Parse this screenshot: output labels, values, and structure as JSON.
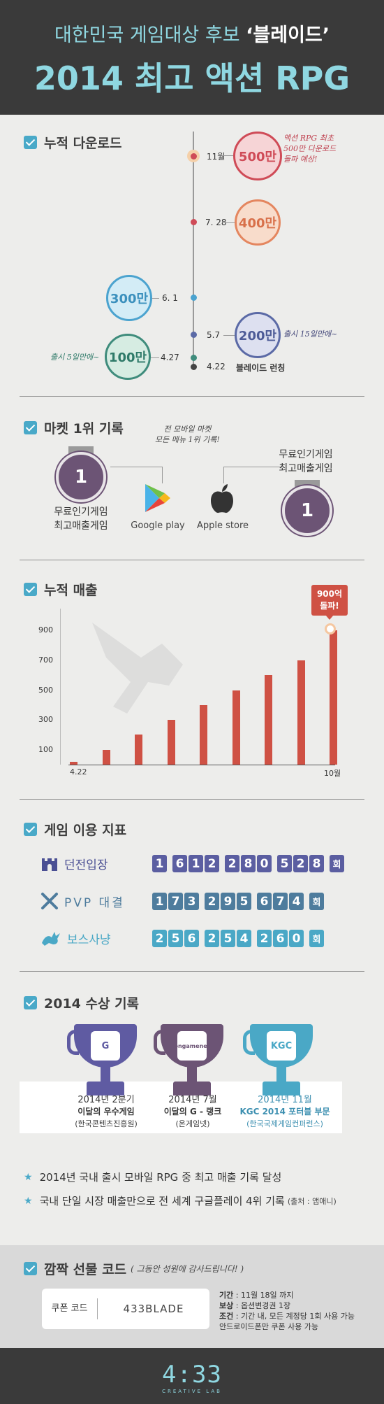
{
  "header": {
    "subtitle_prefix": "대한민국 게임대상 후보",
    "subtitle_game": "‘블레이드’",
    "title": "2014 최고 액션 RPG"
  },
  "downloads": {
    "title": "누적 다운로드",
    "milestones": [
      {
        "date": "11월",
        "value": "500만",
        "color": "#cf4b57"
      },
      {
        "date": "7. 28",
        "value": "400만",
        "color": "#e4865f"
      },
      {
        "date": "6. 1",
        "value": "300만",
        "color": "#4ba3cf"
      },
      {
        "date": "5.7",
        "value": "200만",
        "color": "#5b6aa6"
      },
      {
        "date": "4.27",
        "value": "100만",
        "color": "#3f8c7c"
      }
    ],
    "launch_date": "4.22",
    "launch_label": "블레이드 런칭",
    "note_500": "액션 RPG 최초\n500만 다운로드\n돌파 예상!",
    "note_200": "출시 15일만에~",
    "note_100": "출시 5일만에~"
  },
  "market": {
    "title": "마켓 1위 기록",
    "note": "전 모바일 마켓\n모든 메뉴 1위 기록!",
    "left_rank": "1",
    "right_rank": "1",
    "left_label": "무료인기게임\n최고매출게임",
    "right_label": "무료인기게임\n최고매출게임",
    "google_label": "Google play",
    "apple_label": "Apple store"
  },
  "revenue": {
    "title": "누적 매출",
    "callout": "900억\n돌파!"
  },
  "chart_data": {
    "type": "bar",
    "title": "누적 매출",
    "x_start_label": "4.22",
    "x_end_label": "10월",
    "yticks": [
      100,
      300,
      500,
      700,
      900
    ],
    "ylim": [
      0,
      1000
    ],
    "values": [
      20,
      100,
      200,
      300,
      400,
      500,
      600,
      700,
      900
    ],
    "callout": "900억 돌파!"
  },
  "stats": {
    "title": "게임 이용 지표",
    "rows": [
      {
        "label": "던전입장",
        "digits": [
          "1",
          "6",
          "1",
          "2",
          "2",
          "8",
          "0",
          "5",
          "2",
          "8"
        ],
        "unit": "회",
        "color": "#5b5ea1"
      },
      {
        "label": "PVP 대결",
        "digits": [
          "1",
          "7",
          "3",
          "2",
          "9",
          "5",
          "6",
          "7",
          "4"
        ],
        "unit": "회",
        "color": "#4e7c9d"
      },
      {
        "label": "보스사냥",
        "digits": [
          "2",
          "5",
          "6",
          "2",
          "5",
          "4",
          "2",
          "6",
          "0"
        ],
        "unit": "회",
        "color": "#4aa8c6"
      }
    ]
  },
  "awards": {
    "title": "2014 수상 기록",
    "items": [
      {
        "year": "2014년 2분기",
        "name": "이달의 우수게임",
        "org": "(한국콘텐츠진흥원)",
        "emblem": "G",
        "color": "#5f5ba2",
        "text_color": "#333"
      },
      {
        "year": "2014년 7월",
        "name": "이달의 G - 랭크",
        "org": "(온게임넷)",
        "emblem": "ongamenet",
        "color": "#6c5475",
        "text_color": "#333"
      },
      {
        "year": "2014년 11월",
        "name": "KGC 2014 포터블 부문",
        "org": "(한국국제게임컨퍼런스)",
        "emblem": "KGC",
        "color": "#4aa8c6",
        "text_color": "#3c8fb0"
      }
    ],
    "achievements": [
      {
        "text": "2014년 국내 출시 모바일 RPG 중 최고 매출 기록 달성",
        "note": ""
      },
      {
        "text": "국내 단일 시장 매출만으로 전 세계 구글플레이 4위 기록",
        "note": "(출처 : 앱애니)"
      }
    ]
  },
  "coupon": {
    "title": "깜짝 선물 코드",
    "title_note": "( 그동안 성원에 감사드립니다! )",
    "label": "쿠폰 코드",
    "code": "433BLADE",
    "conditions": [
      {
        "k": "기간",
        "v": " : 11월 18일 까지"
      },
      {
        "k": "보상",
        "v": " : 옵션변경권 1장"
      },
      {
        "k": "조건",
        "v": " : 기간 내, 모든 계정당 1회 사용 가능"
      },
      {
        "k": "",
        "v": "안드로이드폰만 쿠폰 사용 가능"
      }
    ]
  },
  "footer": {
    "logo": "4:33",
    "logo_sub": "CREATIVE LAB"
  }
}
